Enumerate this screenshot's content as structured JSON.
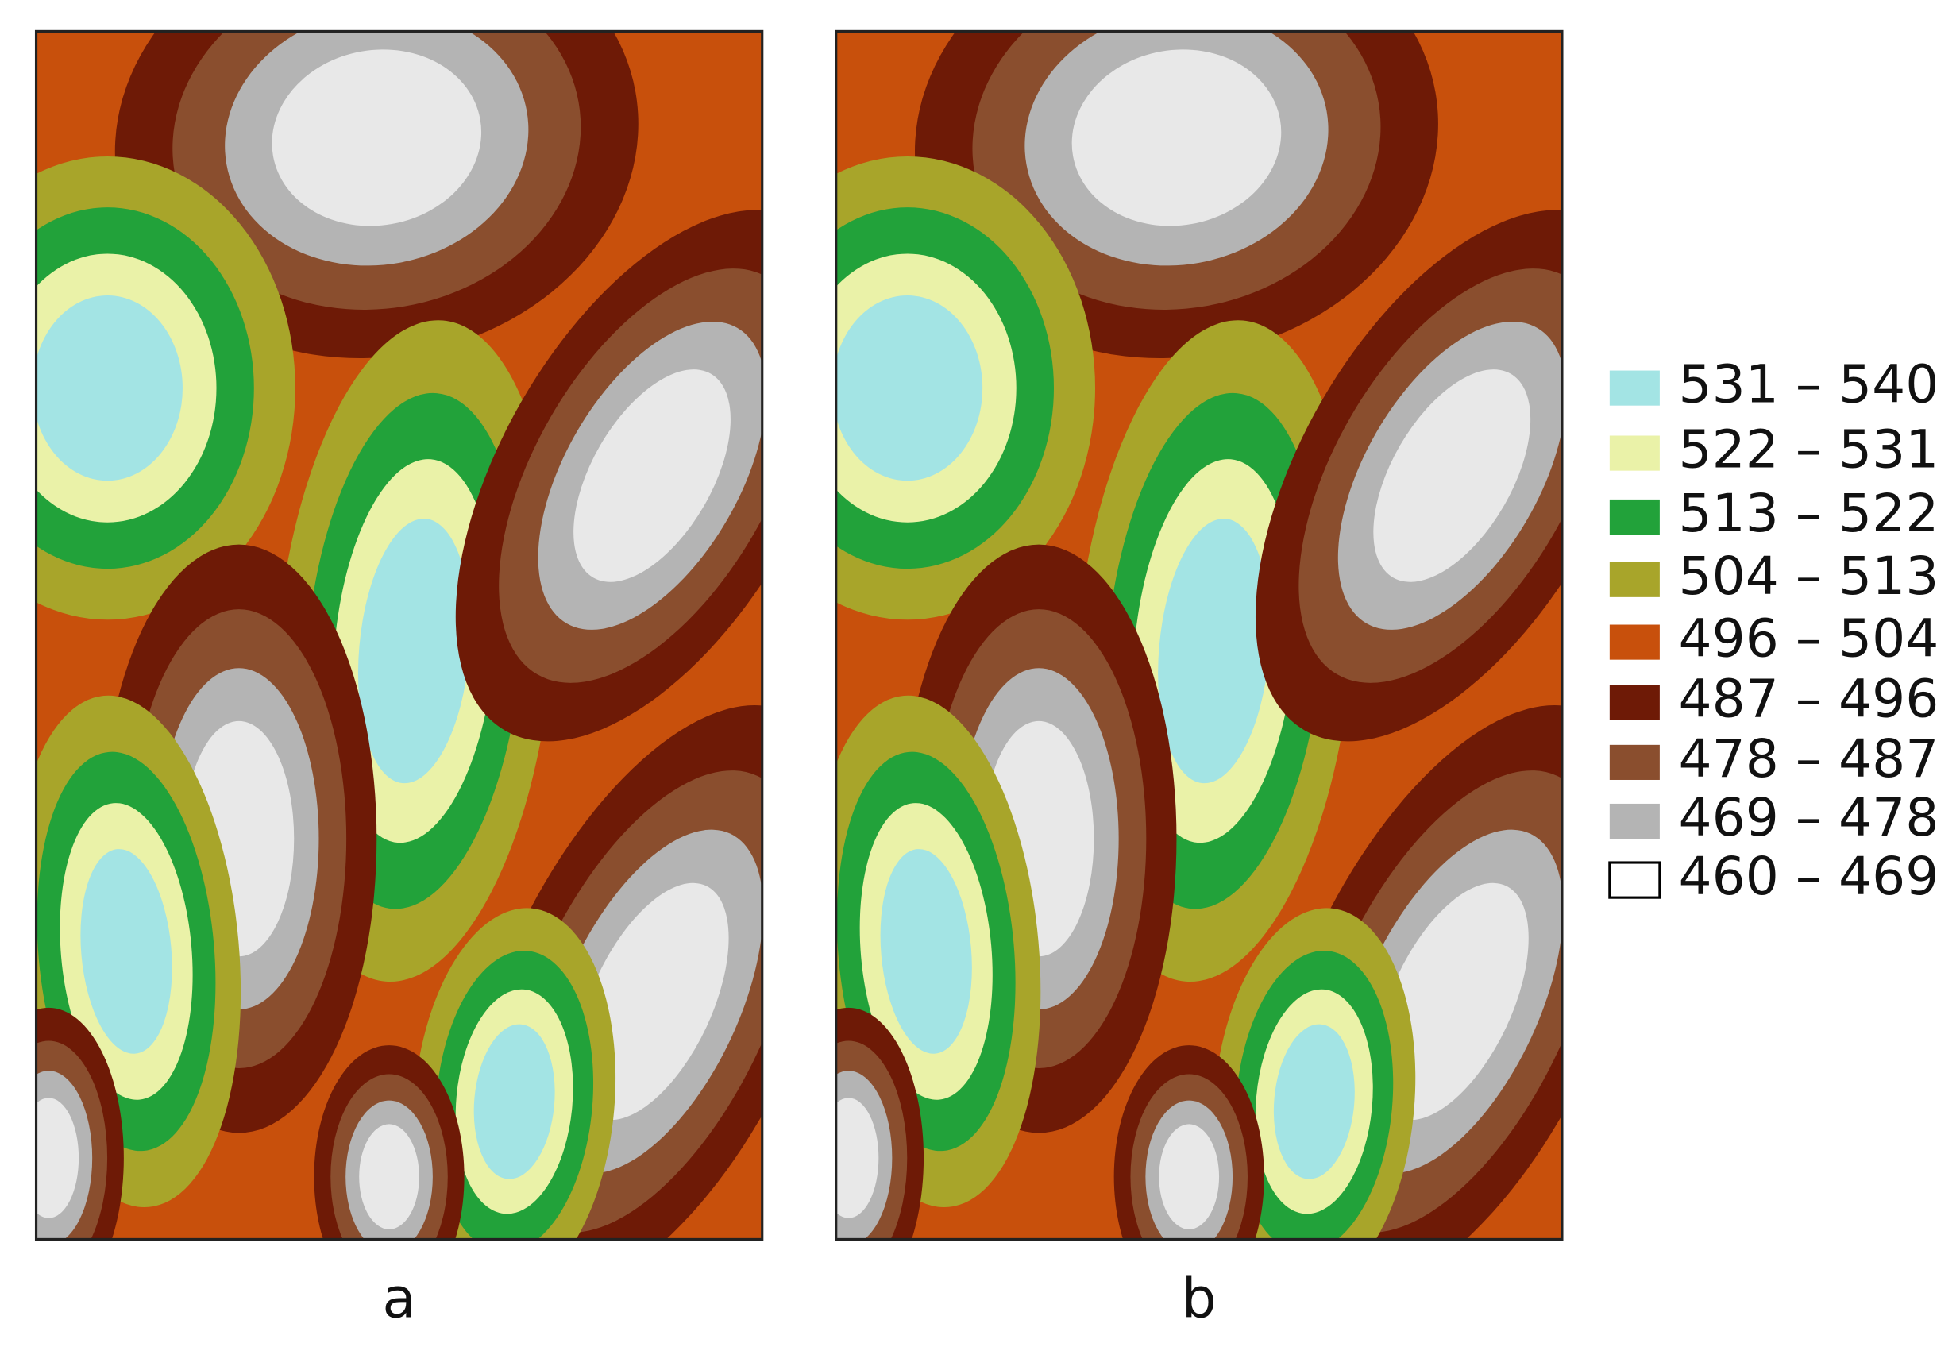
{
  "panels": [
    {
      "label": "a"
    },
    {
      "label": "b"
    }
  ],
  "legend": [
    {
      "label": "531 – 540",
      "color": "#a3e4e4"
    },
    {
      "label": "522 – 531",
      "color": "#eaf2a8"
    },
    {
      "label": "513 – 522",
      "color": "#22a23a"
    },
    {
      "label": "504 – 513",
      "color": "#a8a52a"
    },
    {
      "label": "496 – 504",
      "color": "#c8500c"
    },
    {
      "label": "487 – 496",
      "color": "#6e1a06"
    },
    {
      "label": "478 – 487",
      "color": "#8a4e2e"
    },
    {
      "label": "469 – 478",
      "color": "#b4b4b4"
    },
    {
      "label": "460 – 469",
      "color": "#ffffff"
    }
  ]
}
